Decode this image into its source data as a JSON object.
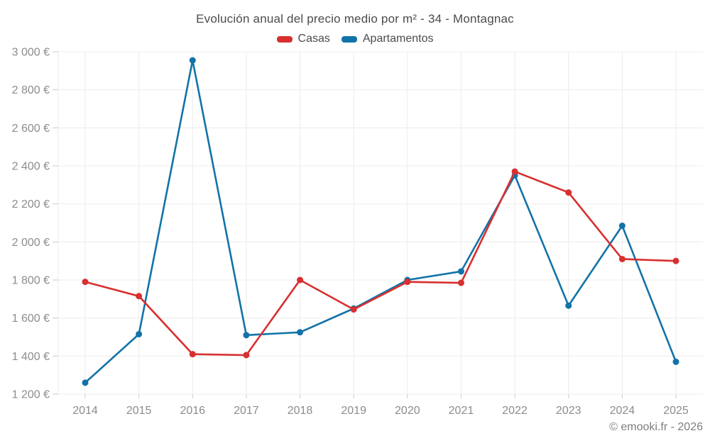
{
  "page": {
    "footer": "© emooki.fr - 2026"
  },
  "legend": {
    "items": [
      {
        "label": "Casas",
        "color": "#d92f2f"
      },
      {
        "label": "Apartamentos",
        "color": "#1273a8"
      }
    ]
  },
  "chart_data": {
    "type": "line",
    "title": "Evolución anual del precio medio por m² - 34 - Montagnac",
    "categories": [
      "2014",
      "2015",
      "2016",
      "2017",
      "2018",
      "2019",
      "2020",
      "2021",
      "2022",
      "2023",
      "2024",
      "2025"
    ],
    "series": [
      {
        "name": "Casas",
        "color": "#d92f2f",
        "values": [
          1790,
          1715,
          1410,
          1405,
          1800,
          1645,
          1790,
          1785,
          2370,
          2260,
          1910,
          1900
        ]
      },
      {
        "name": "Apartamentos",
        "color": "#1273a8",
        "values": [
          1260,
          1515,
          2955,
          1510,
          1525,
          1650,
          1800,
          1845,
          2350,
          1665,
          2085,
          1370
        ]
      }
    ],
    "ylim": [
      1200,
      3000
    ],
    "y_ticks": [
      {
        "value": 1200,
        "label": "1 200 €"
      },
      {
        "value": 1400,
        "label": "1 400 €"
      },
      {
        "value": 1600,
        "label": "1 600 €"
      },
      {
        "value": 1800,
        "label": "1 800 €"
      },
      {
        "value": 2000,
        "label": "2 000 €"
      },
      {
        "value": 2200,
        "label": "2 200 €"
      },
      {
        "value": 2400,
        "label": "2 400 €"
      },
      {
        "value": 2600,
        "label": "2 600 €"
      },
      {
        "value": 2800,
        "label": "2 800 €"
      },
      {
        "value": 3000,
        "label": "3 000 €"
      }
    ],
    "grid": true,
    "legend_position": "top",
    "draw_order": "first-series-on-top"
  }
}
